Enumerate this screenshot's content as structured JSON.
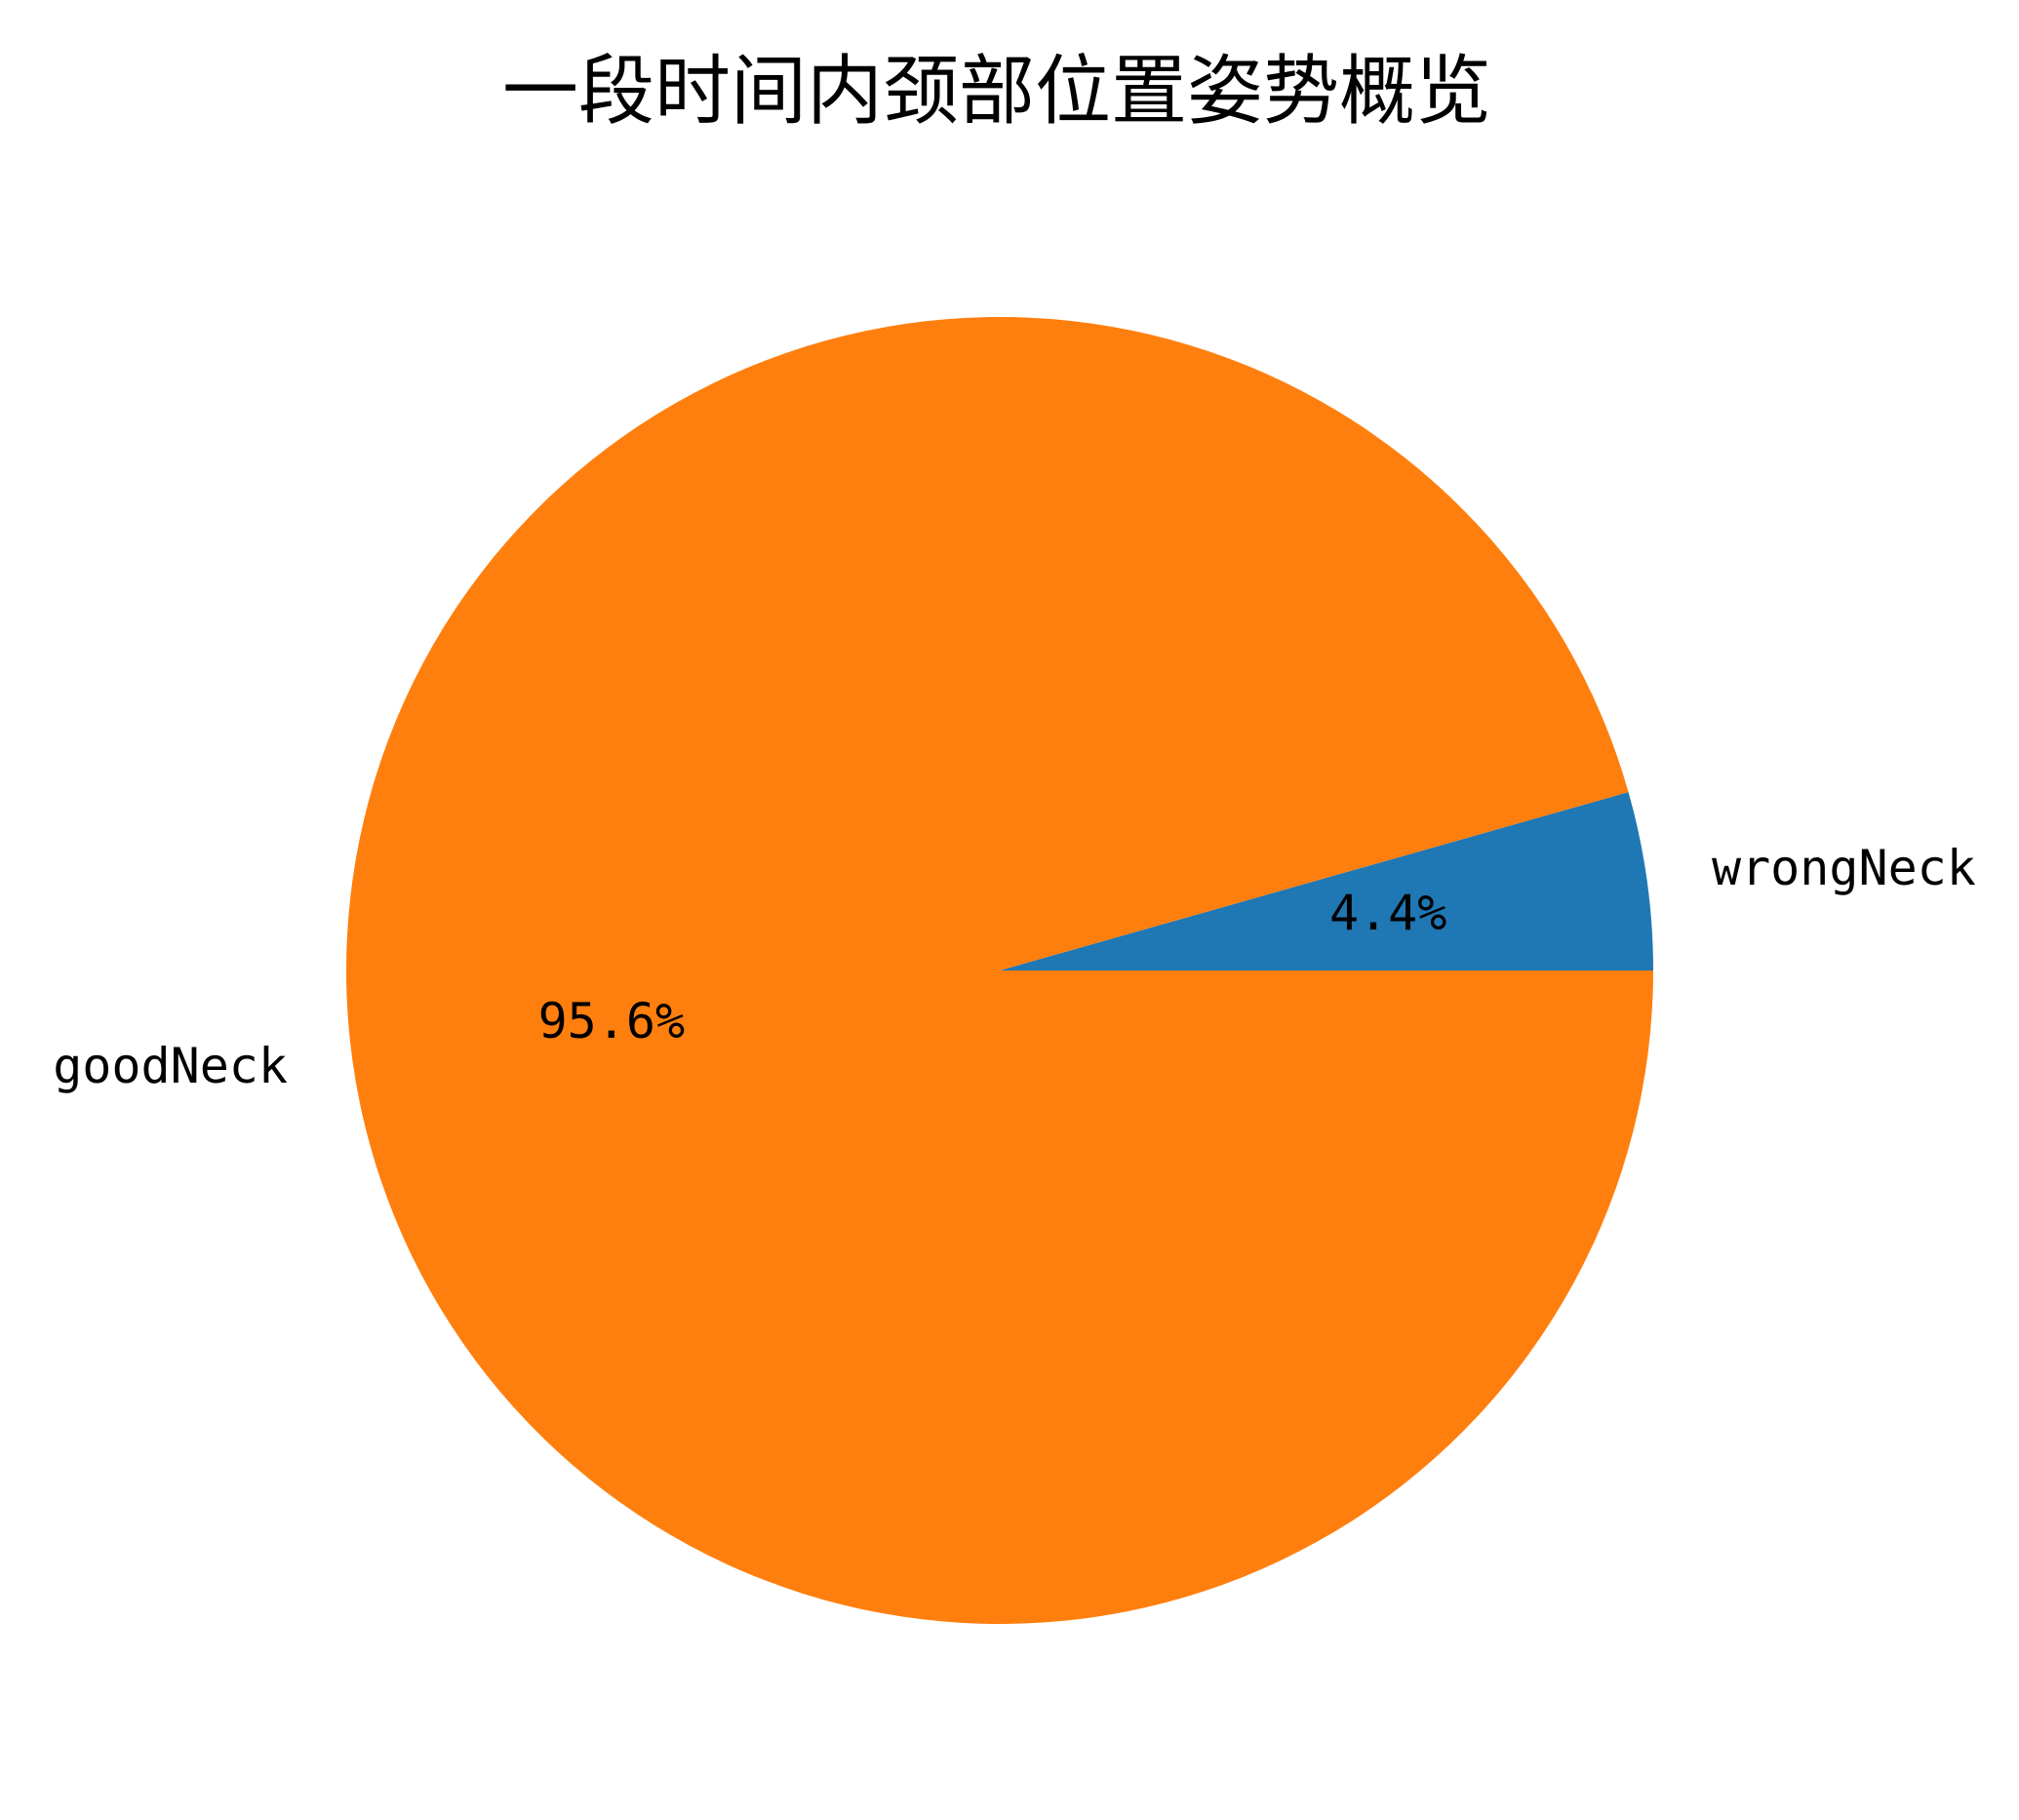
{
  "chart_data": {
    "type": "pie",
    "title": "一段时间内颈部位置姿势概览",
    "start_angle_deg": 0,
    "direction": "counterclockwise",
    "slices": [
      {
        "label": "wrongNeck",
        "value": 4.4,
        "pct_label": "4.4%",
        "color": "#1f77b4"
      },
      {
        "label": "goodNeck",
        "value": 95.6,
        "pct_label": "95.6%",
        "color": "#ff7f0e"
      }
    ]
  }
}
